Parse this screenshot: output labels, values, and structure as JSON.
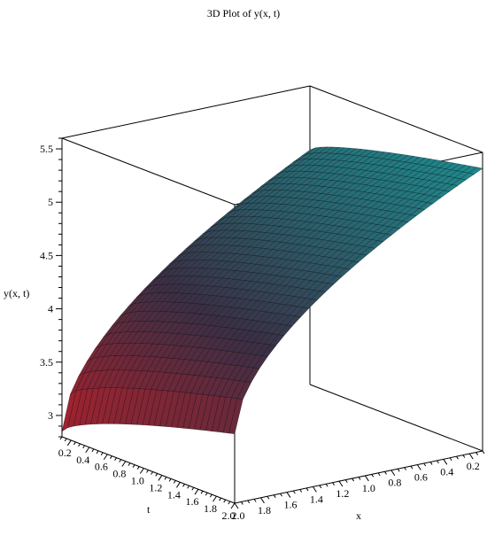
{
  "title": "3D Plot of y(x, t)",
  "chart_data": {
    "type": "surface3d",
    "title": "3D Plot of y(x, t)",
    "zlabel": "y(x, t)",
    "xlabel": "x",
    "tlabel": "t",
    "x_range": [
      0.1,
      2.0
    ],
    "t_range": [
      0.1,
      2.0
    ],
    "z_range": [
      2.8,
      5.6
    ],
    "z_ticks": [
      "3",
      "3.5",
      "4",
      "4.5",
      "5",
      "5.5"
    ],
    "t_ticks": [
      "0.2",
      "0.4",
      "0.6",
      "0.8",
      "1.0",
      "1.2",
      "1.4",
      "1.6",
      "1.8",
      "2.0"
    ],
    "x_ticks": [
      "2.0",
      "1.8",
      "1.6",
      "1.4",
      "1.2",
      "1.0",
      "0.8",
      "0.6",
      "0.4",
      "0.2"
    ],
    "surface_corner_values": [
      {
        "x": 2.0,
        "t": 0.1,
        "y": 2.85
      },
      {
        "x": 2.0,
        "t": 2.0,
        "y": 3.45
      },
      {
        "x": 0.1,
        "t": 0.1,
        "y": 5.0
      },
      {
        "x": 0.1,
        "t": 2.0,
        "y": 5.45
      }
    ],
    "colors": {
      "low": "#b81f29",
      "mid": "#3a2f45",
      "high": "#1e8a8e",
      "mesh": "#000000",
      "box": "#000000"
    }
  }
}
